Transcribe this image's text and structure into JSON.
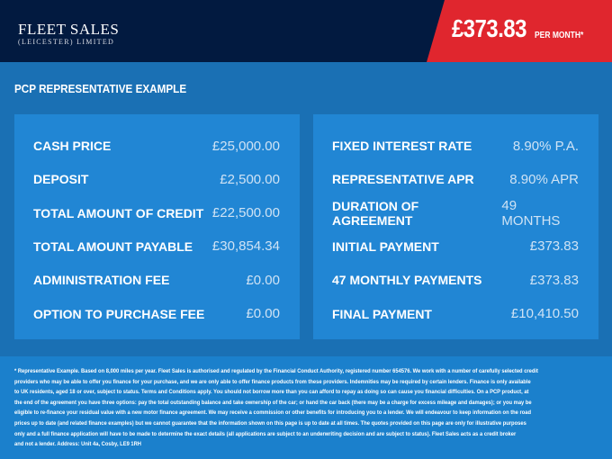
{
  "header": {
    "logo_line1": "FLEET SALES",
    "logo_line2": "(LEICESTER) LIMITED",
    "price": "£373.83",
    "per_month": "PER MONTH*"
  },
  "title": "PCP REPRESENTATIVE EXAMPLE",
  "left": [
    {
      "label": "CASH PRICE",
      "value": "£25,000.00"
    },
    {
      "label": "DEPOSIT",
      "value": "£2,500.00"
    },
    {
      "label": "TOTAL AMOUNT OF CREDIT",
      "value": "£22,500.00"
    },
    {
      "label": "TOTAL AMOUNT PAYABLE",
      "value": "£30,854.34"
    },
    {
      "label": "ADMINISTRATION FEE",
      "value": "£0.00"
    },
    {
      "label": "OPTION TO PURCHASE FEE",
      "value": "£0.00"
    }
  ],
  "right": [
    {
      "label": "FIXED INTEREST RATE",
      "value": "8.90% P.A."
    },
    {
      "label": "REPRESENTATIVE APR",
      "value": "8.90% APR"
    },
    {
      "label": "DURATION OF AGREEMENT",
      "value": "49 MONTHS"
    },
    {
      "label": "INITIAL PAYMENT",
      "value": "£373.83"
    },
    {
      "label": "47 MONTHLY PAYMENTS",
      "value": "£373.83"
    },
    {
      "label": "FINAL PAYMENT",
      "value": "£10,410.50"
    }
  ],
  "footer": [
    "* Representative Example. Based on 8,000 miles per year. Fleet Sales is authorised and regulated by the Financial Conduct Authority, registered number 654576. We work with a number of carefully selected credit",
    "providers who may be able to offer you finance for your purchase, and we are only able to offer finance products from these providers. Indemnities may be required by certain lenders. Finance is only available",
    "to UK residents, aged 18 or over, subject to status. Terms and Conditions apply. You should not borrow more than you can afford to repay as doing so can cause you financial difficulties. On a PCP product, at",
    "the end of the agreement you have three options: pay the total outstanding balance and take ownership of the car; or hand the car back (there may be a charge for excess mileage and damages); or you may be",
    "eligible to re-finance your residual value with a new motor finance agreement. We may receive a commission or other benefits for introducing you to a lender. We will endeavour to keep information on the road",
    "prices up to date (and related finance examples) but we cannot guarantee that the information shown on this page is up to date at all times. The quotes provided on this page are only for illustrative purposes",
    "only and a full finance application will have to be made to determine the exact details (all applications are subject to an underwriting decision and are subject to status). Fleet Sales acts as a credit broker",
    "and not a lender. Address: Unit 4a, Cosby, LE9 1RH"
  ]
}
